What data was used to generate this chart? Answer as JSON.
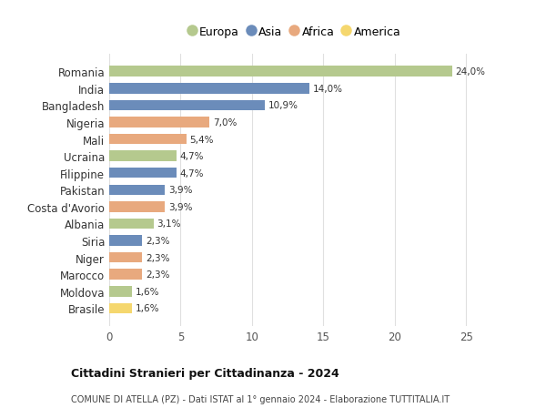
{
  "countries": [
    "Romania",
    "India",
    "Bangladesh",
    "Nigeria",
    "Mali",
    "Ucraina",
    "Filippine",
    "Pakistan",
    "Costa d'Avorio",
    "Albania",
    "Siria",
    "Niger",
    "Marocco",
    "Moldova",
    "Brasile"
  ],
  "values": [
    24.0,
    14.0,
    10.9,
    7.0,
    5.4,
    4.7,
    4.7,
    3.9,
    3.9,
    3.1,
    2.3,
    2.3,
    2.3,
    1.6,
    1.6
  ],
  "labels": [
    "24,0%",
    "14,0%",
    "10,9%",
    "7,0%",
    "5,4%",
    "4,7%",
    "4,7%",
    "3,9%",
    "3,9%",
    "3,1%",
    "2,3%",
    "2,3%",
    "2,3%",
    "1,6%",
    "1,6%"
  ],
  "continents": [
    "Europa",
    "Asia",
    "Asia",
    "Africa",
    "Africa",
    "Europa",
    "Asia",
    "Asia",
    "Africa",
    "Europa",
    "Asia",
    "Africa",
    "Africa",
    "Europa",
    "America"
  ],
  "colors": {
    "Europa": "#b5c98e",
    "Asia": "#6b8cba",
    "Africa": "#e8a97e",
    "America": "#f5d76e"
  },
  "legend_order": [
    "Europa",
    "Asia",
    "Africa",
    "America"
  ],
  "title": "Cittadini Stranieri per Cittadinanza - 2024",
  "subtitle": "COMUNE DI ATELLA (PZ) - Dati ISTAT al 1° gennaio 2024 - Elaborazione TUTTITALIA.IT",
  "xlim": [
    0,
    26
  ],
  "xticks": [
    0,
    5,
    10,
    15,
    20,
    25
  ],
  "background_color": "#ffffff",
  "grid_color": "#e0e0e0"
}
